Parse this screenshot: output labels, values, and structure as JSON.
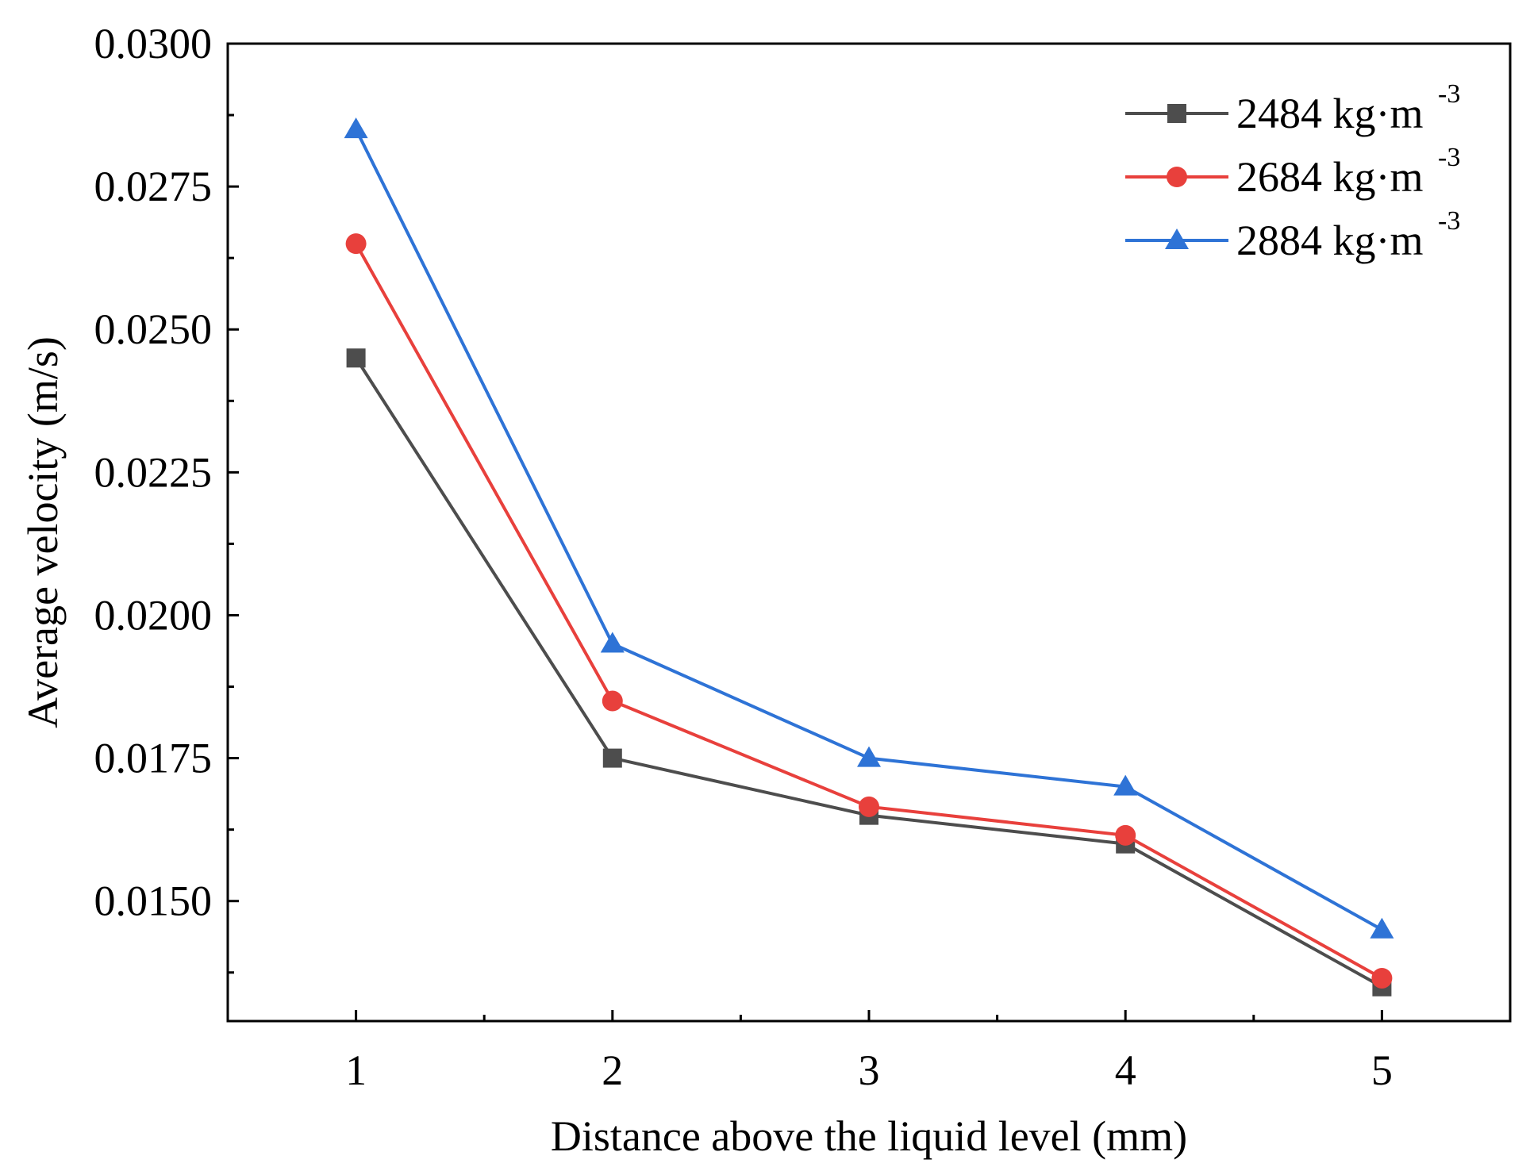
{
  "chart_data": {
    "type": "line",
    "title": "",
    "xlabel": "Distance above the liquid level (mm)",
    "ylabel": "Average velocity (m/s)",
    "x": [
      1,
      2,
      3,
      4,
      5
    ],
    "x_tick_labels": [
      "1",
      "2",
      "3",
      "4",
      "5"
    ],
    "xlim": [
      0.5,
      5.5
    ],
    "ylim": [
      0.0129,
      0.03
    ],
    "y_ticks": [
      0.015,
      0.0175,
      0.02,
      0.0225,
      0.025,
      0.0275,
      0.03
    ],
    "y_tick_labels": [
      "0.0150",
      "0.0175",
      "0.0200",
      "0.0225",
      "0.0250",
      "0.0275",
      "0.0300"
    ],
    "grid": false,
    "legend_position": "top-right",
    "series": [
      {
        "name": "2484 kg·m",
        "name_superscript": "-3",
        "values": [
          0.0245,
          0.0175,
          0.0165,
          0.016,
          0.0135
        ],
        "color": "#4d4d4d",
        "marker": "square"
      },
      {
        "name": "2684 kg·m",
        "name_superscript": "-3",
        "values": [
          0.0265,
          0.0185,
          0.01665,
          0.01615,
          0.01365
        ],
        "color": "#e8403c",
        "marker": "circle"
      },
      {
        "name": "2884 kg·m",
        "name_superscript": "-3",
        "values": [
          0.0285,
          0.0195,
          0.0175,
          0.017,
          0.0145
        ],
        "color": "#2e73d6",
        "marker": "triangle"
      }
    ]
  }
}
